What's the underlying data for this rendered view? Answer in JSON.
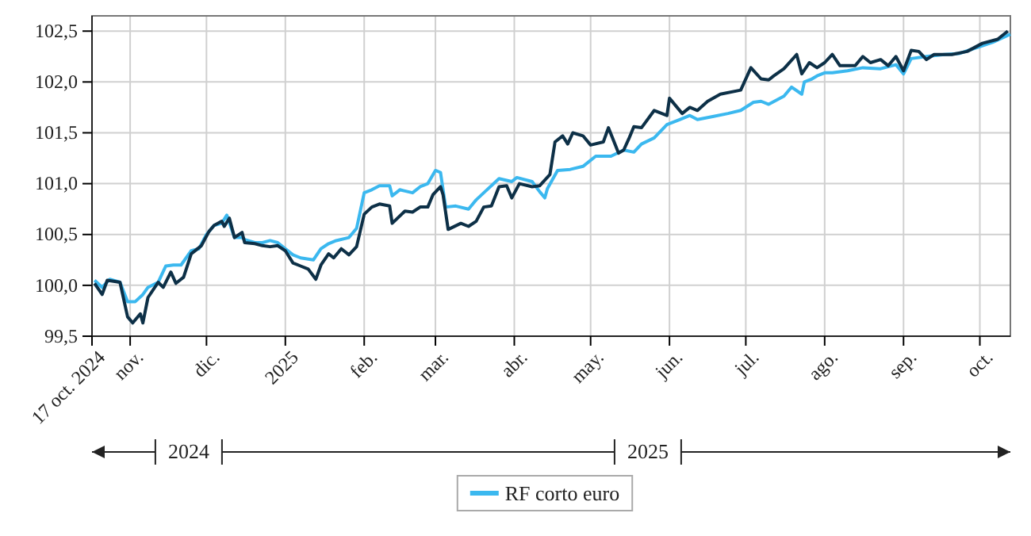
{
  "chart_data": {
    "type": "line",
    "xlim": [
      "2024-10-17",
      "2025-10-13"
    ],
    "ylim": [
      99.5,
      102.65
    ],
    "xticks": [
      {
        "value": "2024-10-17",
        "label": "17 oct. 2024"
      },
      {
        "value": "2024-11-01",
        "label": "nov."
      },
      {
        "value": "2024-12-01",
        "label": "dic."
      },
      {
        "value": "2025-01-01",
        "label": "2025"
      },
      {
        "value": "2025-02-01",
        "label": "feb."
      },
      {
        "value": "2025-03-01",
        "label": "mar."
      },
      {
        "value": "2025-04-01",
        "label": "abr."
      },
      {
        "value": "2025-05-01",
        "label": "may."
      },
      {
        "value": "2025-06-01",
        "label": "jun."
      },
      {
        "value": "2025-07-01",
        "label": "jul."
      },
      {
        "value": "2025-08-01",
        "label": "ago."
      },
      {
        "value": "2025-09-01",
        "label": "sep."
      },
      {
        "value": "2025-10-01",
        "label": "oct."
      }
    ],
    "yticks": [
      {
        "value": 99.5,
        "label": "99,5"
      },
      {
        "value": 100,
        "label": "100,0"
      },
      {
        "value": 100.5,
        "label": "100,5"
      },
      {
        "value": 101,
        "label": "101,0"
      },
      {
        "value": 101.5,
        "label": "101,5"
      },
      {
        "value": 102,
        "label": "102,0"
      },
      {
        "value": 102.5,
        "label": "102,5"
      }
    ],
    "grid": true,
    "legend": "bottom",
    "marker": "none",
    "line_style": "solid",
    "annotations": [
      "2024",
      "2025"
    ],
    "series": [
      {
        "color": "#0d3047",
        "x": [
          "2024-10-18",
          "2024-10-21",
          "2024-10-23",
          "2024-10-28",
          "2024-10-31",
          "2024-11-02",
          "2024-11-05",
          "2024-11-06",
          "2024-11-08",
          "2024-11-12",
          "2024-11-14",
          "2024-11-17",
          "2024-11-19",
          "2024-11-22",
          "2024-11-25",
          "2024-11-29",
          "2024-12-02",
          "2024-12-04",
          "2024-12-07",
          "2024-12-08",
          "2024-12-10",
          "2024-12-12",
          "2024-12-15",
          "2024-12-16",
          "2024-12-20",
          "2024-12-23",
          "2024-12-26",
          "2024-12-29",
          "2025-01-01",
          "2025-01-04",
          "2025-01-07",
          "2025-01-10",
          "2025-01-13",
          "2025-01-15",
          "2025-01-18",
          "2025-01-20",
          "2025-01-23",
          "2025-01-26",
          "2025-01-29",
          "2025-02-01",
          "2025-02-04",
          "2025-02-07",
          "2025-02-11",
          "2025-02-12",
          "2025-02-17",
          "2025-02-20",
          "2025-02-23",
          "2025-02-26",
          "2025-02-28",
          "2025-03-03",
          "2025-03-04",
          "2025-03-06",
          "2025-03-11",
          "2025-03-14",
          "2025-03-17",
          "2025-03-20",
          "2025-03-23",
          "2025-03-26",
          "2025-03-29",
          "2025-03-31",
          "2025-04-03",
          "2025-04-08",
          "2025-04-11",
          "2025-04-15",
          "2025-04-17",
          "2025-04-20",
          "2025-04-22",
          "2025-04-24",
          "2025-04-28",
          "2025-05-01",
          "2025-05-06",
          "2025-05-08",
          "2025-05-12",
          "2025-05-14",
          "2025-05-16",
          "2025-05-18",
          "2025-05-21",
          "2025-05-26",
          "2025-05-31",
          "2025-06-01",
          "2025-06-06",
          "2025-06-09",
          "2025-06-12",
          "2025-06-16",
          "2025-06-21",
          "2025-06-29",
          "2025-07-03",
          "2025-07-07",
          "2025-07-10",
          "2025-07-12",
          "2025-07-16",
          "2025-07-21",
          "2025-07-23",
          "2025-07-26",
          "2025-07-29",
          "2025-08-01",
          "2025-08-04",
          "2025-08-07",
          "2025-08-13",
          "2025-08-16",
          "2025-08-19",
          "2025-08-23",
          "2025-08-26",
          "2025-08-29",
          "2025-09-01",
          "2025-09-04",
          "2025-09-07",
          "2025-09-10",
          "2025-09-13",
          "2025-09-20",
          "2025-09-26",
          "2025-10-02",
          "2025-10-08",
          "2025-10-12"
        ],
        "values": [
          100.02,
          99.91,
          100.05,
          100.03,
          99.69,
          99.63,
          99.72,
          99.63,
          99.88,
          100.03,
          99.98,
          100.13,
          100.02,
          100.08,
          100.31,
          100.39,
          100.53,
          100.59,
          100.63,
          100.58,
          100.66,
          100.47,
          100.52,
          100.42,
          100.41,
          100.39,
          100.38,
          100.39,
          100.34,
          100.22,
          100.19,
          100.16,
          100.06,
          100.2,
          100.31,
          100.27,
          100.36,
          100.3,
          100.38,
          100.7,
          100.77,
          100.8,
          100.78,
          100.61,
          100.73,
          100.72,
          100.77,
          100.77,
          100.89,
          100.97,
          100.89,
          100.55,
          100.61,
          100.58,
          100.63,
          100.77,
          100.78,
          100.97,
          100.98,
          100.86,
          101.0,
          100.97,
          100.98,
          101.09,
          101.41,
          101.47,
          101.39,
          101.5,
          101.47,
          101.38,
          101.41,
          101.55,
          101.3,
          101.33,
          101.44,
          101.56,
          101.55,
          101.72,
          101.67,
          101.84,
          101.69,
          101.75,
          101.72,
          101.81,
          101.88,
          101.92,
          102.14,
          102.03,
          102.02,
          102.06,
          102.13,
          102.27,
          102.08,
          102.19,
          102.14,
          102.19,
          102.27,
          102.16,
          102.16,
          102.25,
          102.19,
          102.22,
          102.16,
          102.25,
          102.11,
          102.31,
          102.3,
          102.22,
          102.27,
          102.27,
          102.3,
          102.38,
          102.42,
          102.5
        ]
      },
      {
        "name": "RF corto euro",
        "color": "#3bb8ef",
        "x": [
          "2024-10-18",
          "2024-10-21",
          "2024-10-24",
          "2024-10-28",
          "2024-10-31",
          "2024-11-03",
          "2024-11-06",
          "2024-11-08",
          "2024-11-12",
          "2024-11-15",
          "2024-11-18",
          "2024-11-21",
          "2024-11-25",
          "2024-11-28",
          "2024-12-01",
          "2024-12-04",
          "2024-12-07",
          "2024-12-09",
          "2024-12-12",
          "2024-12-15",
          "2024-12-16",
          "2024-12-20",
          "2024-12-23",
          "2024-12-26",
          "2024-12-29",
          "2025-01-01",
          "2025-01-04",
          "2025-01-07",
          "2025-01-12",
          "2025-01-15",
          "2025-01-18",
          "2025-01-21",
          "2025-01-26",
          "2025-01-29",
          "2025-02-01",
          "2025-02-04",
          "2025-02-07",
          "2025-02-11",
          "2025-02-12",
          "2025-02-15",
          "2025-02-20",
          "2025-02-23",
          "2025-02-26",
          "2025-03-01",
          "2025-03-03",
          "2025-03-05",
          "2025-03-09",
          "2025-03-14",
          "2025-03-17",
          "2025-03-20",
          "2025-03-26",
          "2025-03-31",
          "2025-04-02",
          "2025-04-08",
          "2025-04-11",
          "2025-04-13",
          "2025-04-14",
          "2025-04-18",
          "2025-04-23",
          "2025-04-28",
          "2025-05-03",
          "2025-05-09",
          "2025-05-14",
          "2025-05-18",
          "2025-05-21",
          "2025-05-26",
          "2025-05-31",
          "2025-06-05",
          "2025-06-09",
          "2025-06-12",
          "2025-06-18",
          "2025-06-24",
          "2025-06-29",
          "2025-07-04",
          "2025-07-07",
          "2025-07-10",
          "2025-07-16",
          "2025-07-19",
          "2025-07-23",
          "2025-07-24",
          "2025-07-27",
          "2025-07-29",
          "2025-08-01",
          "2025-08-04",
          "2025-08-10",
          "2025-08-16",
          "2025-08-23",
          "2025-08-29",
          "2025-09-01",
          "2025-09-04",
          "2025-09-10",
          "2025-09-17",
          "2025-09-23",
          "2025-09-30",
          "2025-10-06",
          "2025-10-13"
        ],
        "values": [
          100.05,
          99.98,
          100.06,
          100.03,
          99.84,
          99.84,
          99.91,
          99.98,
          100.03,
          100.19,
          100.2,
          100.2,
          100.34,
          100.36,
          100.5,
          100.59,
          100.61,
          100.69,
          100.47,
          100.47,
          100.45,
          100.42,
          100.42,
          100.44,
          100.42,
          100.36,
          100.3,
          100.27,
          100.25,
          100.36,
          100.41,
          100.44,
          100.47,
          100.56,
          100.91,
          100.94,
          100.98,
          100.98,
          100.88,
          100.94,
          100.91,
          100.97,
          101.0,
          101.13,
          101.11,
          100.77,
          100.78,
          100.75,
          100.84,
          100.91,
          101.05,
          101.02,
          101.06,
          101.02,
          100.92,
          100.86,
          100.95,
          101.13,
          101.14,
          101.17,
          101.27,
          101.27,
          101.33,
          101.31,
          101.39,
          101.45,
          101.58,
          101.63,
          101.67,
          101.63,
          101.66,
          101.69,
          101.72,
          101.8,
          101.81,
          101.78,
          101.86,
          101.95,
          101.88,
          102.0,
          102.03,
          102.06,
          102.09,
          102.09,
          102.11,
          102.14,
          102.13,
          102.17,
          102.08,
          102.23,
          102.25,
          102.27,
          102.28,
          102.34,
          102.39,
          102.47
        ]
      }
    ]
  }
}
